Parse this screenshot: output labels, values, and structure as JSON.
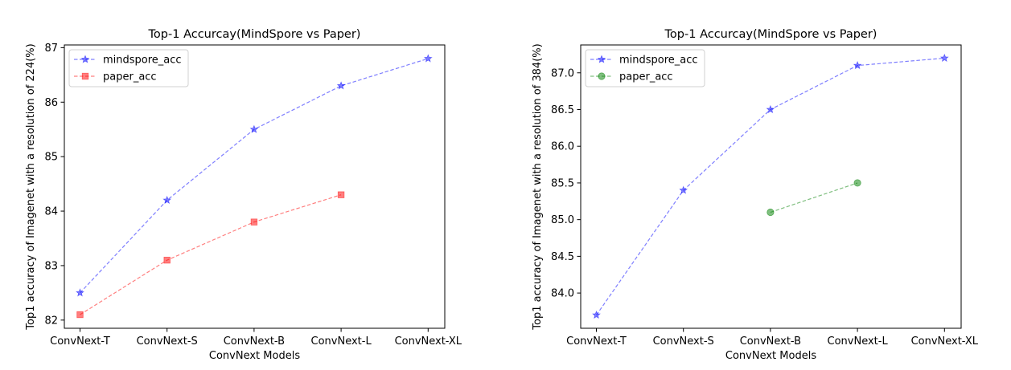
{
  "chart_data": [
    {
      "type": "line",
      "title": "Top-1 Accurcay(MindSpore vs Paper)",
      "xlabel": "ConvNext Models",
      "ylabel": "Top1 accuracy of Imagenet with a resolution of 224(%)",
      "categories": [
        "ConvNext-T",
        "ConvNext-S",
        "ConvNext-B",
        "ConvNext-L",
        "ConvNext-XL"
      ],
      "ylim": [
        81.85,
        87.05
      ],
      "yticks": [
        82,
        83,
        84,
        85,
        86,
        87
      ],
      "ytick_labels": [
        "82",
        "83",
        "84",
        "85",
        "86",
        "87"
      ],
      "grid": false,
      "legend": "top-left",
      "series": [
        {
          "name": "mindspore_acc",
          "values": [
            82.5,
            84.2,
            85.5,
            86.3,
            86.8
          ],
          "color": "#0000ff",
          "marker": "star",
          "linestyle": "dashed"
        },
        {
          "name": "paper_acc",
          "values": [
            82.1,
            83.1,
            83.8,
            84.3,
            null
          ],
          "color": "#ff0000",
          "marker": "square",
          "linestyle": "dashed"
        }
      ]
    },
    {
      "type": "line",
      "title": "Top-1 Accurcay(MindSpore vs Paper)",
      "xlabel": "ConvNext Models",
      "ylabel": "Top1 accuracy of Imagenet with a resolution of 384(%)",
      "categories": [
        "ConvNext-T",
        "ConvNext-S",
        "ConvNext-B",
        "ConvNext-L",
        "ConvNext-XL"
      ],
      "ylim": [
        83.52,
        87.38
      ],
      "yticks": [
        84.0,
        84.5,
        85.0,
        85.5,
        86.0,
        86.5,
        87.0
      ],
      "ytick_labels": [
        "84.0",
        "84.5",
        "85.0",
        "85.5",
        "86.0",
        "86.5",
        "87.0"
      ],
      "grid": false,
      "legend": "top-left",
      "series": [
        {
          "name": "mindspore_acc",
          "values": [
            83.7,
            85.4,
            86.5,
            87.1,
            87.2
          ],
          "color": "#0000ff",
          "marker": "star",
          "linestyle": "dashed"
        },
        {
          "name": "paper_acc",
          "values": [
            null,
            null,
            85.1,
            85.5,
            null
          ],
          "color": "#008000",
          "marker": "circle",
          "linestyle": "dashed"
        }
      ]
    }
  ]
}
